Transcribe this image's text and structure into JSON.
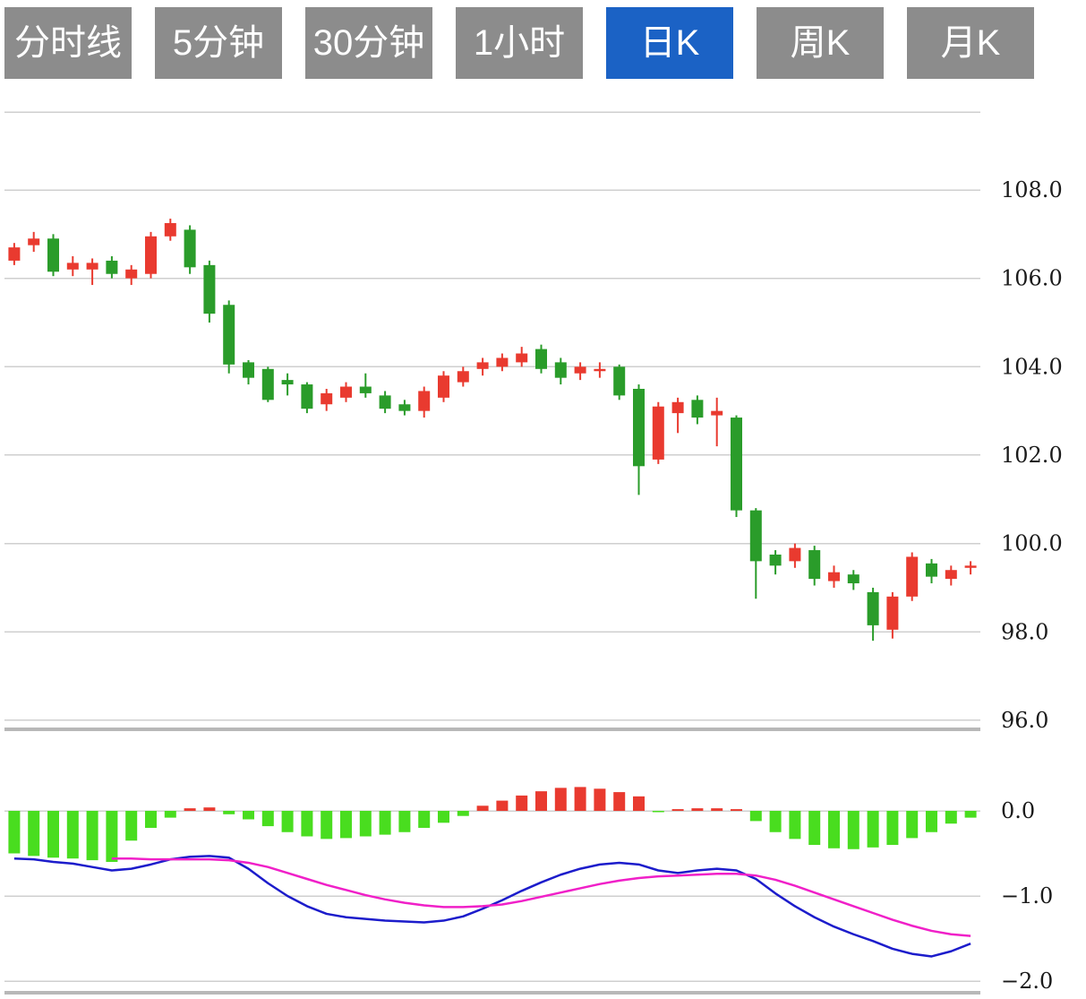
{
  "tabs": [
    {
      "label": "分时线",
      "active": false
    },
    {
      "label": "5分钟",
      "active": false
    },
    {
      "label": "30分钟",
      "active": false
    },
    {
      "label": "1小时",
      "active": false
    },
    {
      "label": "日K",
      "active": true
    },
    {
      "label": "周K",
      "active": false
    },
    {
      "label": "月K",
      "active": false
    }
  ],
  "colors": {
    "tab_bg": "#8c8c8c",
    "tab_active_bg": "#1b62c5",
    "tab_text": "#ffffff",
    "up": "#e93a2f",
    "down": "#2a9c2a",
    "hist_up": "#e93a2f",
    "hist_down": "#49dd1f",
    "dif_line": "#1c1ccb",
    "dea_line": "#f020c8",
    "grid": "#cfcfcf",
    "grid_strong": "#b8b8b8",
    "axis_text": "#1a1a1a"
  },
  "chart_data": {
    "type": "candlestick",
    "title": "Daily K-line with MACD",
    "legend_position": "none",
    "grid": true,
    "price_axis": {
      "ticks": [
        108.0,
        106.0,
        104.0,
        102.0,
        100.0,
        98.0,
        96.0
      ],
      "min": 95.8,
      "max": 109.8
    },
    "macd_axis": {
      "ticks": [
        0.0,
        -1.0,
        -2.0
      ],
      "min": -2.1,
      "max": 0.45
    },
    "candles": [
      [
        106.4,
        106.8,
        106.3,
        106.7
      ],
      [
        106.75,
        107.05,
        106.6,
        106.9
      ],
      [
        106.9,
        107.0,
        106.05,
        106.15
      ],
      [
        106.2,
        106.5,
        106.05,
        106.35
      ],
      [
        106.2,
        106.45,
        105.85,
        106.35
      ],
      [
        106.4,
        106.5,
        106.0,
        106.1
      ],
      [
        106.0,
        106.3,
        105.85,
        106.2
      ],
      [
        106.1,
        107.05,
        106.0,
        106.95
      ],
      [
        106.95,
        107.35,
        106.85,
        107.25
      ],
      [
        107.1,
        107.2,
        106.1,
        106.25
      ],
      [
        106.3,
        106.4,
        105.0,
        105.2
      ],
      [
        105.4,
        105.5,
        103.85,
        104.05
      ],
      [
        104.1,
        104.15,
        103.6,
        103.75
      ],
      [
        103.95,
        104.0,
        103.2,
        103.25
      ],
      [
        103.7,
        103.85,
        103.35,
        103.6
      ],
      [
        103.6,
        103.65,
        102.95,
        103.05
      ],
      [
        103.15,
        103.5,
        103.0,
        103.4
      ],
      [
        103.3,
        103.65,
        103.2,
        103.55
      ],
      [
        103.55,
        103.85,
        103.3,
        103.4
      ],
      [
        103.35,
        103.45,
        102.95,
        103.05
      ],
      [
        103.15,
        103.25,
        102.9,
        103.0
      ],
      [
        103.0,
        103.55,
        102.85,
        103.45
      ],
      [
        103.3,
        103.9,
        103.2,
        103.8
      ],
      [
        103.65,
        104.0,
        103.55,
        103.9
      ],
      [
        103.95,
        104.2,
        103.8,
        104.1
      ],
      [
        104.0,
        104.3,
        103.9,
        104.2
      ],
      [
        104.1,
        104.45,
        104.0,
        104.3
      ],
      [
        104.4,
        104.5,
        103.85,
        103.95
      ],
      [
        104.1,
        104.2,
        103.6,
        103.75
      ],
      [
        103.85,
        104.1,
        103.7,
        104.0
      ],
      [
        103.9,
        104.1,
        103.75,
        103.95
      ],
      [
        104.0,
        104.05,
        103.25,
        103.35
      ],
      [
        103.5,
        103.6,
        101.1,
        101.75
      ],
      [
        101.9,
        103.2,
        101.8,
        103.1
      ],
      [
        102.95,
        103.3,
        102.5,
        103.2
      ],
      [
        103.25,
        103.35,
        102.7,
        102.85
      ],
      [
        102.9,
        103.3,
        102.2,
        103.0
      ],
      [
        102.85,
        102.9,
        100.6,
        100.75
      ],
      [
        100.75,
        100.8,
        98.75,
        99.6
      ],
      [
        99.75,
        99.85,
        99.3,
        99.5
      ],
      [
        99.6,
        100.0,
        99.45,
        99.9
      ],
      [
        99.85,
        99.95,
        99.05,
        99.2
      ],
      [
        99.15,
        99.5,
        99.0,
        99.35
      ],
      [
        99.3,
        99.4,
        98.95,
        99.1
      ],
      [
        98.9,
        99.0,
        97.8,
        98.15
      ],
      [
        98.05,
        98.9,
        97.85,
        98.8
      ],
      [
        98.8,
        99.8,
        98.7,
        99.7
      ],
      [
        99.55,
        99.65,
        99.1,
        99.25
      ],
      [
        99.2,
        99.5,
        99.05,
        99.4
      ],
      [
        99.45,
        99.6,
        99.3,
        99.5
      ]
    ],
    "macd": {
      "histogram": [
        -0.5,
        -0.53,
        -0.55,
        -0.56,
        -0.58,
        -0.6,
        -0.35,
        -0.2,
        -0.08,
        0.03,
        0.04,
        -0.04,
        -0.1,
        -0.18,
        -0.25,
        -0.3,
        -0.33,
        -0.32,
        -0.3,
        -0.28,
        -0.25,
        -0.2,
        -0.14,
        -0.06,
        0.06,
        0.12,
        0.18,
        0.23,
        0.27,
        0.28,
        0.26,
        0.22,
        0.17,
        -0.01,
        0.02,
        0.03,
        0.03,
        0.02,
        -0.12,
        -0.25,
        -0.33,
        -0.4,
        -0.44,
        -0.45,
        -0.43,
        -0.4,
        -0.32,
        -0.25,
        -0.15,
        -0.08
      ],
      "dif": [
        -0.56,
        -0.57,
        -0.6,
        -0.62,
        -0.66,
        -0.7,
        -0.68,
        -0.63,
        -0.57,
        -0.54,
        -0.53,
        -0.55,
        -0.68,
        -0.85,
        -1.0,
        -1.12,
        -1.21,
        -1.25,
        -1.27,
        -1.29,
        -1.3,
        -1.31,
        -1.29,
        -1.24,
        -1.15,
        -1.05,
        -0.94,
        -0.84,
        -0.75,
        -0.68,
        -0.63,
        -0.61,
        -0.63,
        -0.7,
        -0.73,
        -0.7,
        -0.68,
        -0.7,
        -0.8,
        -0.97,
        -1.12,
        -1.25,
        -1.36,
        -1.45,
        -1.53,
        -1.62,
        -1.68,
        -1.71,
        -1.65,
        -1.56
      ],
      "dea": [
        null,
        null,
        null,
        null,
        null,
        -0.56,
        -0.56,
        -0.57,
        -0.57,
        -0.57,
        -0.57,
        -0.58,
        -0.61,
        -0.66,
        -0.73,
        -0.8,
        -0.87,
        -0.93,
        -0.99,
        -1.04,
        -1.08,
        -1.11,
        -1.13,
        -1.13,
        -1.12,
        -1.1,
        -1.06,
        -1.01,
        -0.96,
        -0.91,
        -0.86,
        -0.82,
        -0.79,
        -0.77,
        -0.76,
        -0.75,
        -0.74,
        -0.74,
        -0.76,
        -0.81,
        -0.88,
        -0.96,
        -1.04,
        -1.12,
        -1.2,
        -1.28,
        -1.35,
        -1.41,
        -1.45,
        -1.47
      ]
    }
  }
}
